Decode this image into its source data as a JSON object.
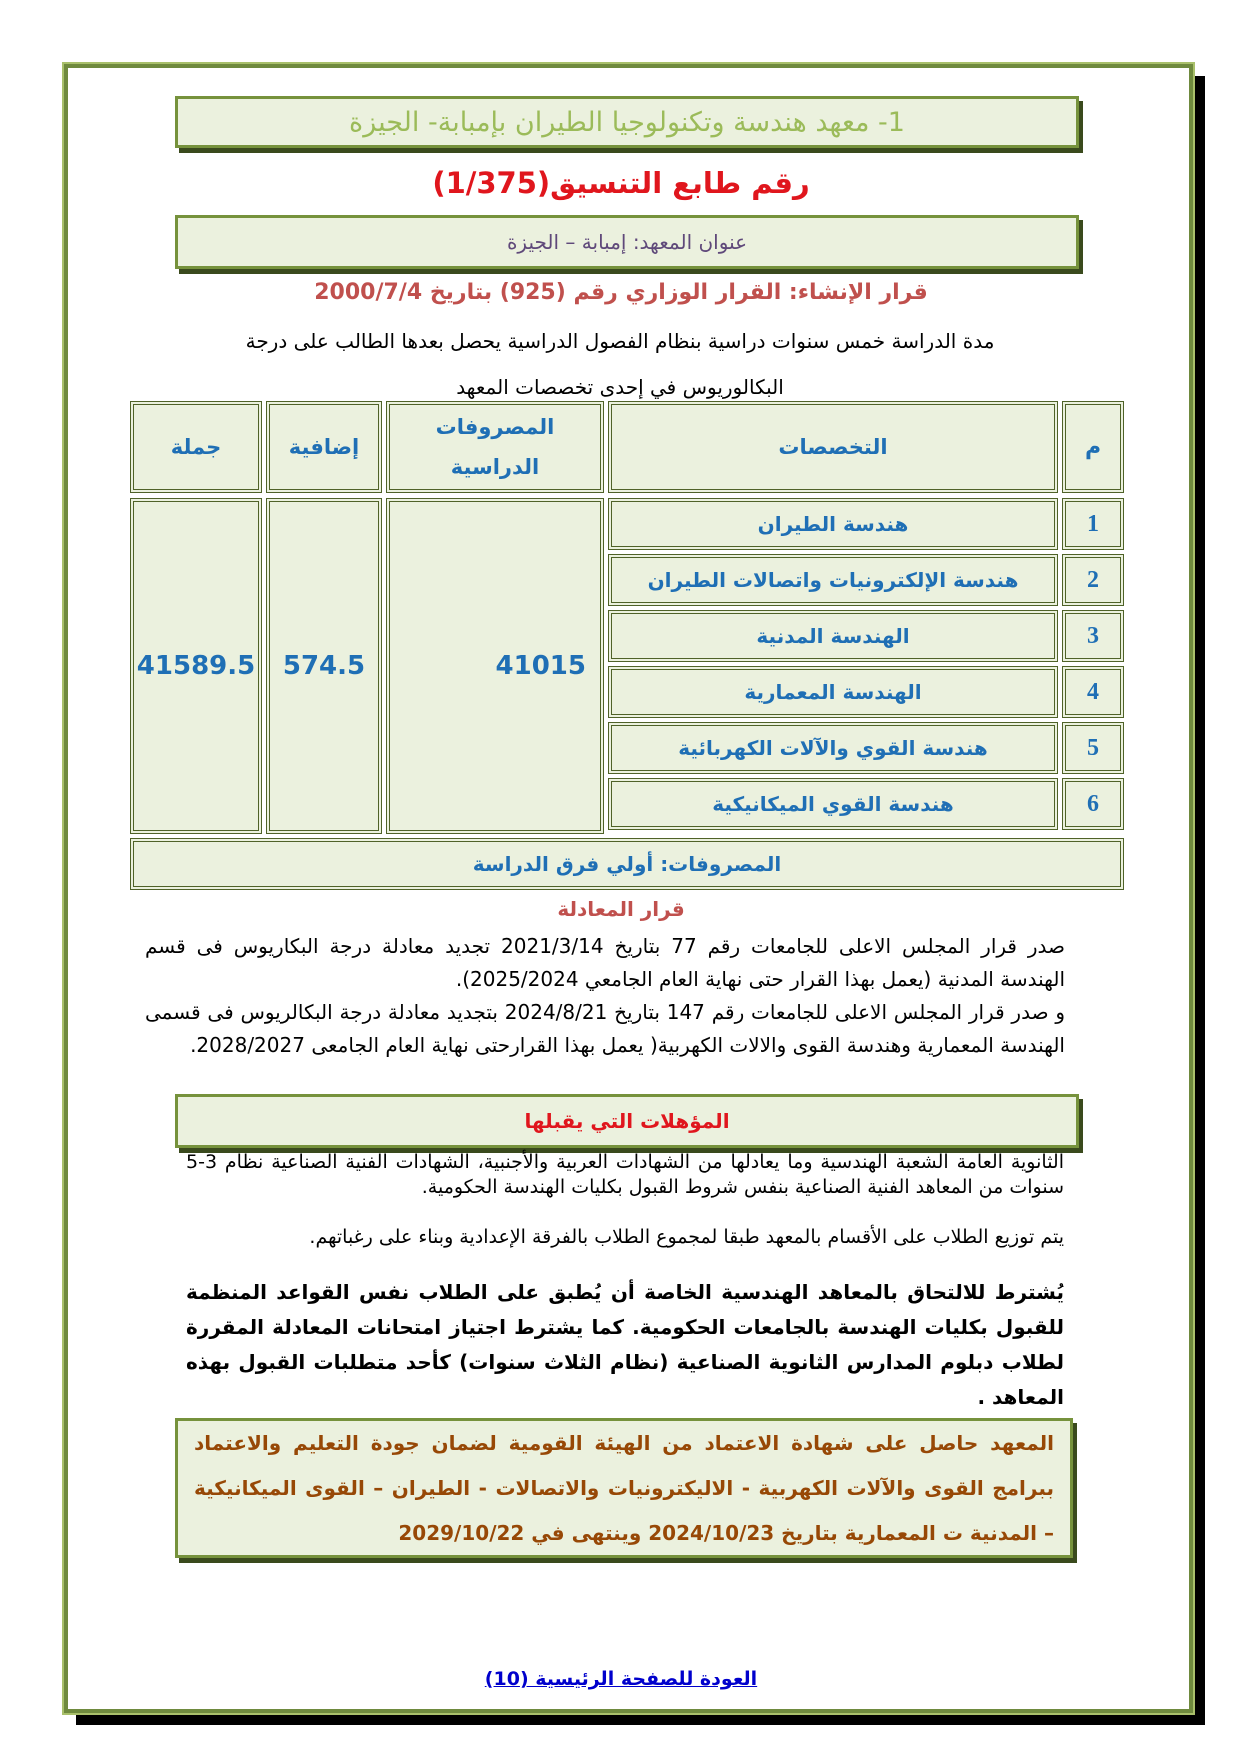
{
  "title": "1- معهد هندسة وتكنولوجيا الطيران بإمبابة- الجيزة",
  "coordination_code": "رقم طابع التنسيق(1/375)",
  "address": "عنوان المعهد: إمبابة – الجيزة",
  "decree": "قرار الإنشاء: القرار الوزاري رقم (925) بتاريخ 2000/7/4",
  "study_duration": "مدة الدراسة خمس سنوات دراسية بنظام الفصول الدراسية يحصل بعدها الطالب على درجة البكالوريوس في إحدى تخصصات المعهد",
  "table": {
    "headers": {
      "no": "م",
      "specialization": "التخصصات",
      "tuition": "المصروفات الدراسية",
      "additional": "إضافية",
      "total": "جملة"
    },
    "rows": [
      {
        "no": "1",
        "name": "هندسة الطيران"
      },
      {
        "no": "2",
        "name": "هندسة الإلكترونيات واتصالات الطيران"
      },
      {
        "no": "3",
        "name": "الهندسة المدنية"
      },
      {
        "no": "4",
        "name": "الهندسة المعمارية"
      },
      {
        "no": "5",
        "name": "هندسة القوي والآلات الكهربائية"
      },
      {
        "no": "6",
        "name": "هندسة القوي الميكانيكية"
      }
    ],
    "tuition": "41015",
    "additional": "574.5",
    "total": "41589.5",
    "footer": "المصروفات: أولي فرق الدراسة"
  },
  "equivalence": {
    "heading": "قرار المعادلة",
    "p1": "صدر قرار المجلس الاعلى للجامعات رقم 77 بتاريخ 2021/3/14 تجديد معادلة درجة البكاريوس فى قسم الهندسة المدنية (يعمل بهذا القرار حتى نهاية العام الجامعي 2025/2024).",
    "p2": "و صدر قرار المجلس الاعلى للجامعات رقم 147 بتاريخ 2024/8/21 بتجديد معادلة درجة البكالريوس فى قسمى الهندسة المعمارية وهندسة القوى والالات الكهربية( يعمل بهذا القرارحتى نهاية العام الجامعى 2028/2027."
  },
  "qualifications": {
    "heading": "المؤهلات التي يقبلها",
    "p1": "الثانوية العامة الشعبة الهندسية وما يعادلها من الشهادات العربية والأجنبية، الشهادات الفنية الصناعية نظام 3-5 سنوات من المعاهد الفنية الصناعية بنفس شروط القبول بكليات الهندسة الحكومية.",
    "p2": "يتم توزيع الطلاب على الأقسام بالمعهد طبقا لمجموع الطلاب بالفرقة الإعدادية وبناء على رغباتهم.",
    "p3": "يُشترط للالتحاق بالمعاهد الهندسية الخاصة أن يُطبق على الطلاب نفس القواعد المنظمة للقبول بكليات الهندسة بالجامعات الحكومية. كما يشترط اجتياز امتحانات المعادلة المقررة لطلاب دبلوم المدارس الثانوية الصناعية (نظام الثلاث سنوات) كأحد متطلبات القبول بهذه المعاهد ."
  },
  "accreditation": "المعهد حاصل على شهادة الاعتماد من الهيئة القومية لضمان جودة التعليم والاعتماد ببرامج القوى والآلات الكهربية - الاليكترونيات والاتصالات - الطيران – القوى الميكانيكية – المدنية ت المعمارية بتاريخ 2024/10/23 وينتهى في 2029/10/22",
  "back_link": "العودة للصفحة الرئيسية (10)",
  "colors": {
    "box_fill": "#ebf1de",
    "border": "#76923c",
    "red": "#e0161d",
    "brown_red": "#c0504d",
    "blue": "#1f6fb5",
    "accreditation_text": "#974806",
    "link": "#0000cc"
  }
}
